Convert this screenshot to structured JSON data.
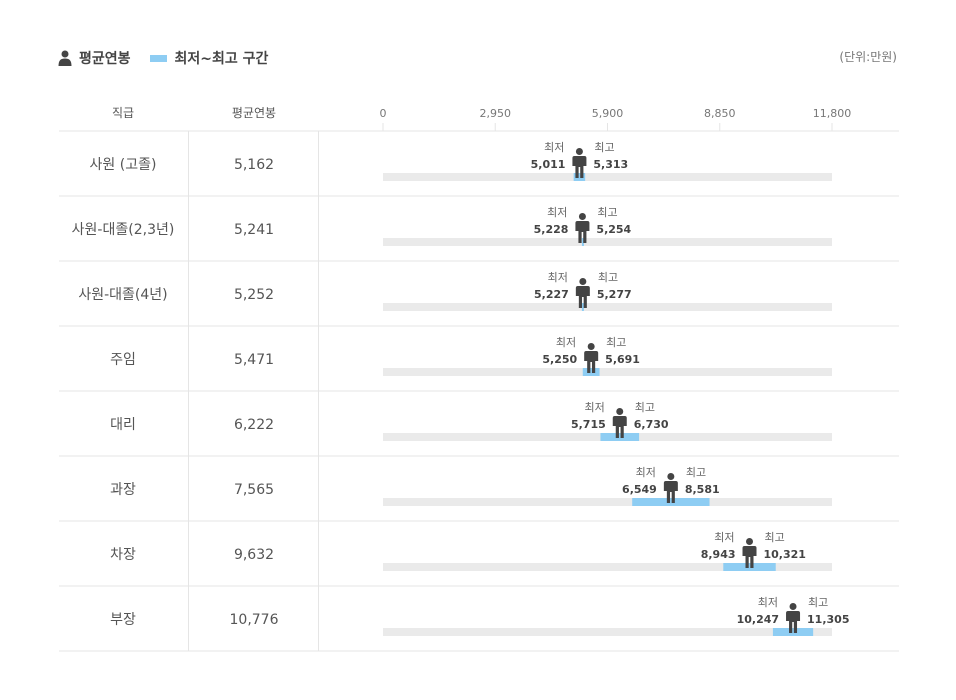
{
  "legend": {
    "avg_label": "평균연봉",
    "range_label": "최저~최고 구간",
    "unit": "(단위:만원)"
  },
  "chart_data": {
    "type": "range-bar",
    "headers": {
      "rank": "직급",
      "avg": "평균연봉"
    },
    "axis": {
      "min": 0,
      "max": 11800,
      "ticks": [
        0,
        2950,
        5900,
        8850,
        11800
      ],
      "tick_labels": [
        "0",
        "2,950",
        "5,900",
        "8,850",
        "11,800"
      ]
    },
    "min_label": "최저",
    "max_label": "최고",
    "colors": {
      "range": "#8ecdf3",
      "track": "#eaeaea",
      "person": "#444444",
      "grid": "#e5e5e5"
    },
    "rows": [
      {
        "rank": "사원 (고졸)",
        "avg": 5162,
        "avg_label": "5,162",
        "min": 5011,
        "min_label": "5,011",
        "max": 5313,
        "max_label": "5,313"
      },
      {
        "rank": "사원-대졸(2,3년)",
        "avg": 5241,
        "avg_label": "5,241",
        "min": 5228,
        "min_label": "5,228",
        "max": 5254,
        "max_label": "5,254"
      },
      {
        "rank": "사원-대졸(4년)",
        "avg": 5252,
        "avg_label": "5,252",
        "min": 5227,
        "min_label": "5,227",
        "max": 5277,
        "max_label": "5,277"
      },
      {
        "rank": "주임",
        "avg": 5471,
        "avg_label": "5,471",
        "min": 5250,
        "min_label": "5,250",
        "max": 5691,
        "max_label": "5,691"
      },
      {
        "rank": "대리",
        "avg": 6222,
        "avg_label": "6,222",
        "min": 5715,
        "min_label": "5,715",
        "max": 6730,
        "max_label": "6,730"
      },
      {
        "rank": "과장",
        "avg": 7565,
        "avg_label": "7,565",
        "min": 6549,
        "min_label": "6,549",
        "max": 8581,
        "max_label": "8,581"
      },
      {
        "rank": "차장",
        "avg": 9632,
        "avg_label": "9,632",
        "min": 8943,
        "min_label": "8,943",
        "max": 10321,
        "max_label": "10,321"
      },
      {
        "rank": "부장",
        "avg": 10776,
        "avg_label": "10,776",
        "min": 10247,
        "min_label": "10,247",
        "max": 11305,
        "max_label": "11,305"
      }
    ]
  }
}
